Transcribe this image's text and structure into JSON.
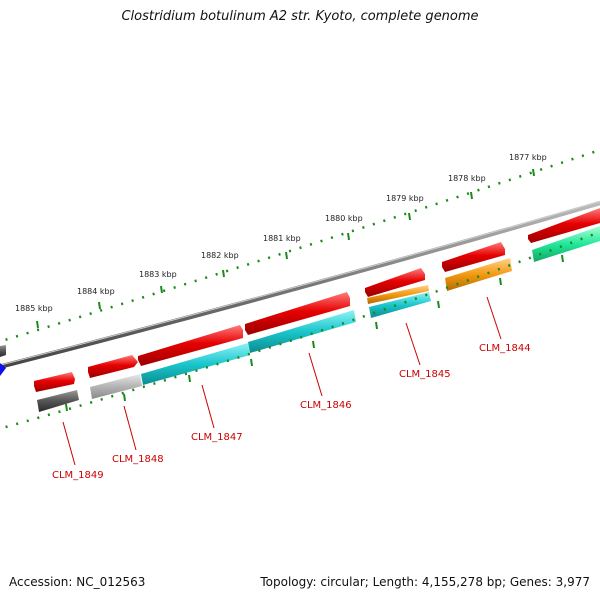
{
  "title": "Clostridium botulinum A2 str. Kyoto, complete genome",
  "footer": {
    "accession": "Accession: NC_012563",
    "summary": "Topology: circular; Length: 4,155,278 bp; Genes: 3,977"
  },
  "scale": {
    "tick_labels": [
      "1877 kbp",
      "1878 kbp",
      "1879 kbp",
      "1880 kbp",
      "1881 kbp",
      "1882 kbp",
      "1883 kbp",
      "1884 kbp",
      "1885 kbp"
    ]
  },
  "colors": {
    "forward_cds": "#e60000",
    "gene_black": "#555555",
    "gene_grey": "#aaaaaa",
    "gene_cyan": "#1ac6cc",
    "gene_orange": "#f39a12",
    "gene_green": "#22e89a",
    "strand": "#777777",
    "ticks": "#1a8a1a",
    "label": "#cc0000",
    "blue_marker": "#1010ee"
  },
  "genes": [
    {
      "id": "CLM_1849",
      "label": "CLM_1849"
    },
    {
      "id": "CLM_1848",
      "label": "CLM_1848"
    },
    {
      "id": "CLM_1847",
      "label": "CLM_1847"
    },
    {
      "id": "CLM_1846",
      "label": "CLM_1846"
    },
    {
      "id": "CLM_1845",
      "label": "CLM_1845"
    },
    {
      "id": "CLM_1844",
      "label": "CLM_1844"
    }
  ]
}
